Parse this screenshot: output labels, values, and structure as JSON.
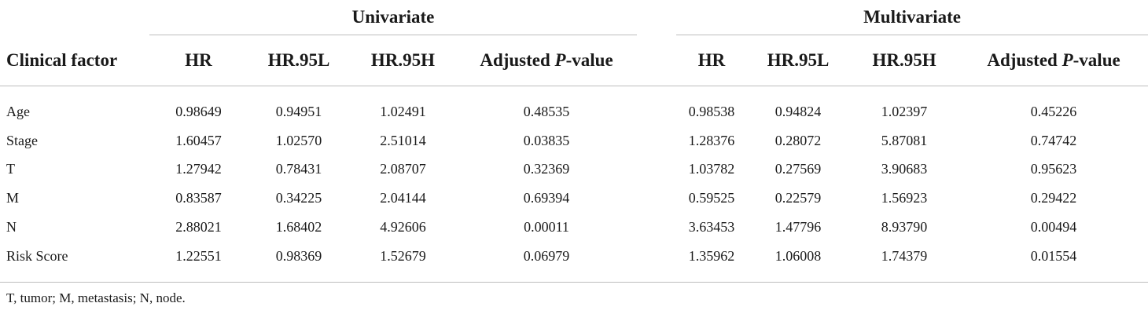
{
  "groups": {
    "univariate": "Univariate",
    "multivariate": "Multivariate"
  },
  "columns": {
    "clinical_factor": "Clinical factor",
    "hr": "HR",
    "hr95l": "HR.95L",
    "hr95h": "HR.95H",
    "adj_p_prefix": "Adjusted ",
    "adj_p_italic": "P",
    "adj_p_suffix": "-value"
  },
  "rows": [
    {
      "factor": "Age",
      "u_hr": "0.98649",
      "u_l": "0.94951",
      "u_h": "1.02491",
      "u_p": "0.48535",
      "m_hr": "0.98538",
      "m_l": "0.94824",
      "m_h": "1.02397",
      "m_p": "0.45226"
    },
    {
      "factor": "Stage",
      "u_hr": "1.60457",
      "u_l": "1.02570",
      "u_h": "2.51014",
      "u_p": "0.03835",
      "m_hr": "1.28376",
      "m_l": "0.28072",
      "m_h": "5.87081",
      "m_p": "0.74742"
    },
    {
      "factor": "T",
      "u_hr": "1.27942",
      "u_l": "0.78431",
      "u_h": "2.08707",
      "u_p": "0.32369",
      "m_hr": "1.03782",
      "m_l": "0.27569",
      "m_h": "3.90683",
      "m_p": "0.95623"
    },
    {
      "factor": "M",
      "u_hr": "0.83587",
      "u_l": "0.34225",
      "u_h": "2.04144",
      "u_p": "0.69394",
      "m_hr": "0.59525",
      "m_l": "0.22579",
      "m_h": "1.56923",
      "m_p": "0.29422"
    },
    {
      "factor": "N",
      "u_hr": "2.88021",
      "u_l": "1.68402",
      "u_h": "4.92606",
      "u_p": "0.00011",
      "m_hr": "3.63453",
      "m_l": "1.47796",
      "m_h": "8.93790",
      "m_p": "0.00494"
    },
    {
      "factor": "Risk Score",
      "u_hr": "1.22551",
      "u_l": "0.98369",
      "u_h": "1.52679",
      "u_p": "0.06979",
      "m_hr": "1.35962",
      "m_l": "1.06008",
      "m_h": "1.74379",
      "m_p": "0.01554"
    }
  ],
  "footnote": "T, tumor; M, metastasis; N, node."
}
